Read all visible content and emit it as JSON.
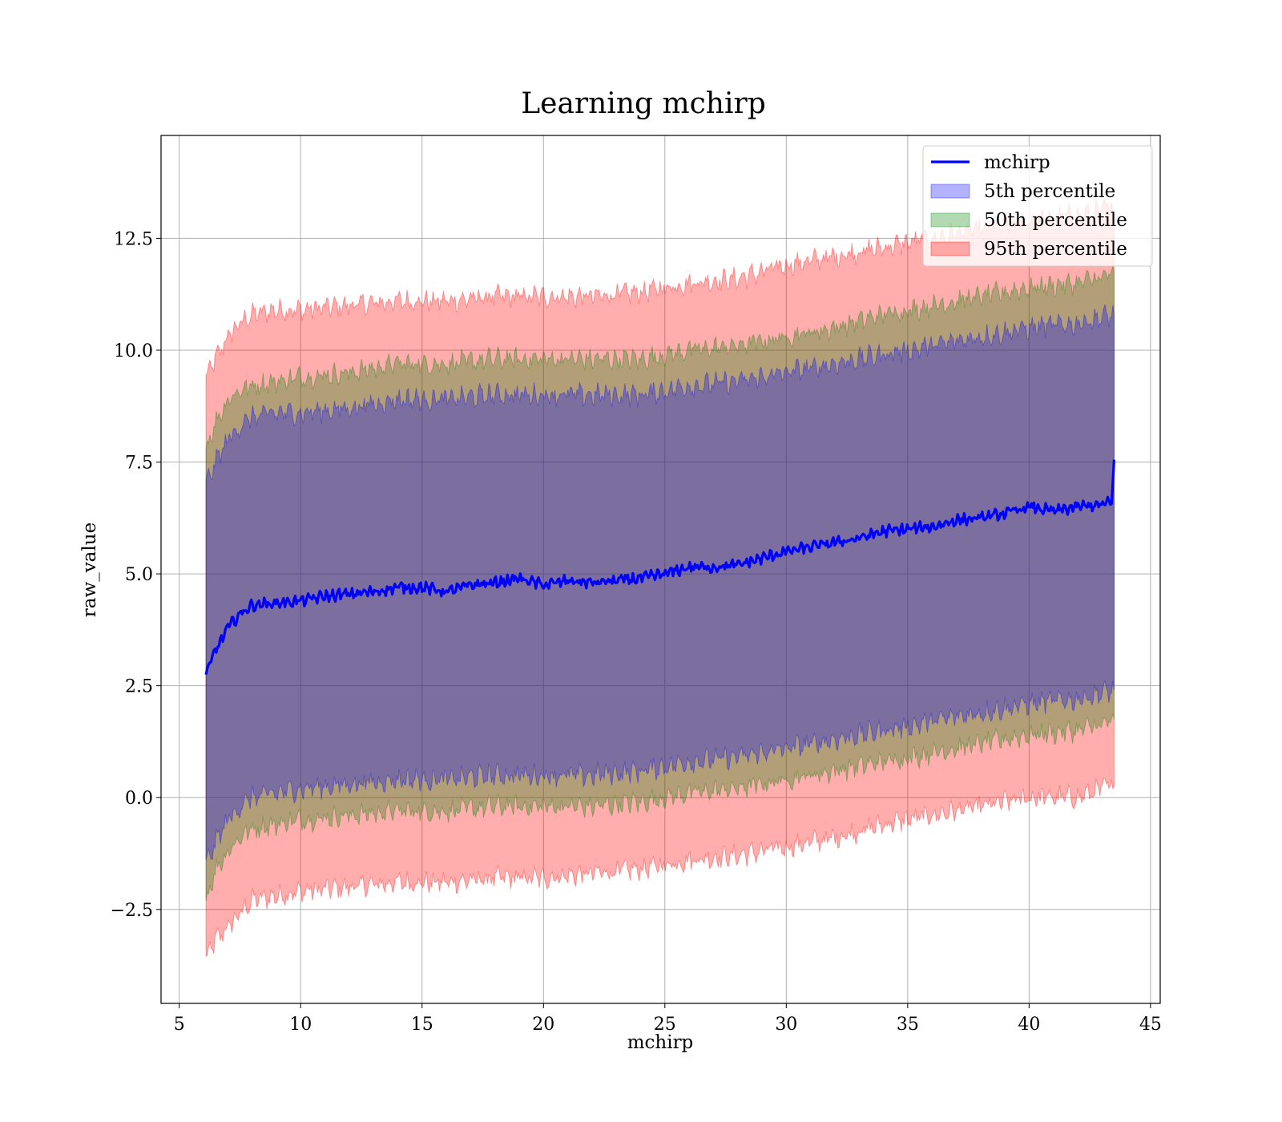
{
  "chart_data": {
    "type": "line",
    "title": "Learning mchirp",
    "xlabel": "mchirp",
    "ylabel": "raw_value",
    "xlim": [
      4.25,
      45.4
    ],
    "ylim": [
      -4.6,
      14.8
    ],
    "x_ticks": [
      5,
      10,
      15,
      20,
      25,
      30,
      35,
      40,
      45
    ],
    "x_tick_labels": [
      "5",
      "10",
      "15",
      "20",
      "25",
      "30",
      "35",
      "40",
      "45"
    ],
    "y_ticks": [
      -2.5,
      0.0,
      2.5,
      5.0,
      7.5,
      10.0,
      12.5
    ],
    "y_tick_labels": [
      "−2.5",
      "0.0",
      "2.5",
      "5.0",
      "7.5",
      "10.0",
      "12.5"
    ],
    "grid": true,
    "legend_position": "top-right",
    "series": [
      {
        "name": "mchirp",
        "type": "line",
        "color": "#0000ff",
        "x": [
          6.1,
          6.5,
          7.0,
          7.5,
          8.0,
          9.0,
          10.0,
          11.0,
          12.0,
          13.0,
          14.0,
          15.0,
          16.0,
          17.0,
          18.0,
          19.0,
          20.0,
          21.0,
          22.0,
          23.0,
          24.0,
          25.0,
          26.0,
          27.0,
          28.0,
          29.0,
          30.0,
          31.0,
          32.0,
          33.0,
          34.0,
          35.0,
          36.0,
          37.0,
          38.0,
          39.0,
          40.0,
          41.0,
          42.0,
          43.0,
          43.4,
          43.5
        ],
        "values": [
          2.75,
          3.3,
          3.8,
          4.1,
          4.3,
          4.35,
          4.4,
          4.5,
          4.55,
          4.6,
          4.7,
          4.7,
          4.6,
          4.75,
          4.8,
          4.9,
          4.75,
          4.85,
          4.8,
          4.85,
          4.9,
          5.0,
          5.15,
          5.15,
          5.2,
          5.35,
          5.5,
          5.6,
          5.7,
          5.8,
          5.95,
          6.0,
          6.05,
          6.2,
          6.25,
          6.35,
          6.5,
          6.4,
          6.5,
          6.55,
          6.6,
          7.55
        ]
      },
      {
        "name": "5th percentile",
        "type": "band",
        "color": "#0000ff",
        "x": [
          6.1,
          6.5,
          7.0,
          7.5,
          8.0,
          9.0,
          10.0,
          12.0,
          14.0,
          16.0,
          18.0,
          20.0,
          22.0,
          24.0,
          26.0,
          28.0,
          30.0,
          32.0,
          34.0,
          36.0,
          38.0,
          40.0,
          42.0,
          43.5
        ],
        "upper": [
          7.0,
          7.5,
          8.0,
          8.3,
          8.5,
          8.6,
          8.6,
          8.7,
          8.9,
          8.9,
          9.0,
          9.0,
          9.0,
          9.0,
          9.2,
          9.3,
          9.5,
          9.7,
          9.9,
          10.1,
          10.3,
          10.5,
          10.6,
          10.8
        ],
        "lower": [
          -1.5,
          -1.0,
          -0.5,
          -0.2,
          0.0,
          0.1,
          0.2,
          0.3,
          0.4,
          0.4,
          0.5,
          0.5,
          0.5,
          0.6,
          0.8,
          0.9,
          1.1,
          1.3,
          1.5,
          1.7,
          1.9,
          2.1,
          2.2,
          2.4
        ]
      },
      {
        "name": "50th percentile",
        "type": "band",
        "color": "#008000",
        "x": [
          6.1,
          6.5,
          7.0,
          7.5,
          8.0,
          9.0,
          10.0,
          12.0,
          14.0,
          16.0,
          18.0,
          20.0,
          22.0,
          24.0,
          26.0,
          28.0,
          30.0,
          32.0,
          34.0,
          36.0,
          38.0,
          40.0,
          42.0,
          43.5
        ],
        "upper": [
          7.8,
          8.4,
          8.9,
          9.1,
          9.2,
          9.3,
          9.4,
          9.5,
          9.7,
          9.7,
          9.8,
          9.8,
          9.8,
          9.8,
          10.0,
          10.1,
          10.3,
          10.5,
          10.8,
          11.0,
          11.2,
          11.4,
          11.5,
          11.7
        ],
        "lower": [
          -2.3,
          -1.6,
          -1.2,
          -0.9,
          -0.7,
          -0.6,
          -0.5,
          -0.4,
          -0.3,
          -0.3,
          -0.2,
          -0.2,
          -0.2,
          -0.1,
          0.1,
          0.2,
          0.4,
          0.6,
          0.8,
          1.0,
          1.2,
          1.4,
          1.5,
          1.7
        ]
      },
      {
        "name": "95th percentile",
        "type": "band",
        "color": "#ff0000",
        "x": [
          6.1,
          6.5,
          7.0,
          7.5,
          8.0,
          9.0,
          10.0,
          12.0,
          14.0,
          16.0,
          18.0,
          20.0,
          22.0,
          24.0,
          26.0,
          28.0,
          30.0,
          32.0,
          34.0,
          36.0,
          38.0,
          40.0,
          42.0,
          43.5
        ],
        "upper": [
          9.4,
          9.8,
          10.3,
          10.6,
          10.8,
          10.9,
          10.9,
          11.0,
          11.1,
          11.1,
          11.2,
          11.2,
          11.2,
          11.3,
          11.5,
          11.6,
          11.9,
          12.1,
          12.3,
          12.5,
          12.7,
          12.9,
          13.0,
          13.2
        ],
        "lower": [
          -3.6,
          -3.2,
          -2.9,
          -2.6,
          -2.3,
          -2.2,
          -2.1,
          -2.0,
          -1.9,
          -1.9,
          -1.8,
          -1.8,
          -1.7,
          -1.6,
          -1.4,
          -1.3,
          -1.1,
          -0.9,
          -0.6,
          -0.4,
          -0.2,
          0.0,
          0.0,
          0.3
        ]
      }
    ]
  }
}
